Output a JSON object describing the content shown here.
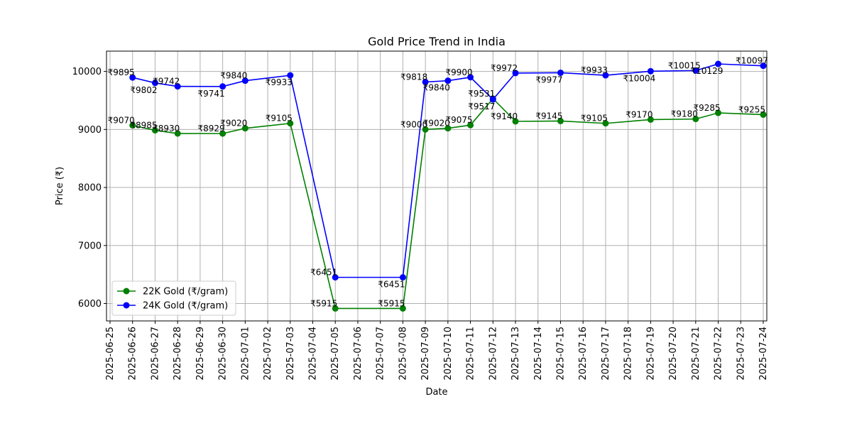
{
  "chart_data": {
    "type": "line",
    "title": "Gold Price Trend in India",
    "xlabel": "Date",
    "ylabel": "Price (₹)",
    "x_ticks": [
      "2025-06-25",
      "2025-06-26",
      "2025-06-27",
      "2025-06-28",
      "2025-06-29",
      "2025-06-30",
      "2025-07-01",
      "2025-07-02",
      "2025-07-03",
      "2025-07-04",
      "2025-07-05",
      "2025-07-06",
      "2025-07-07",
      "2025-07-08",
      "2025-07-09",
      "2025-07-10",
      "2025-07-11",
      "2025-07-12",
      "2025-07-13",
      "2025-07-14",
      "2025-07-15",
      "2025-07-16",
      "2025-07-17",
      "2025-07-18",
      "2025-07-19",
      "2025-07-20",
      "2025-07-21",
      "2025-07-22",
      "2025-07-23",
      "2025-07-24"
    ],
    "y_ticks": [
      6000,
      7000,
      8000,
      9000,
      10000
    ],
    "y_tick_labels": [
      "6000",
      "7000",
      "8000",
      "9000",
      "10000"
    ],
    "ylim": [
      5700,
      10350
    ],
    "xlim": [
      "2025-06-25",
      "2025-07-24"
    ],
    "grid": true,
    "legend_position": "lower-left",
    "series": [
      {
        "name": "22K Gold (₹/gram)",
        "color": "#008000",
        "label_prefix": "₹",
        "points": [
          {
            "x": "2025-06-26",
            "y": 9070,
            "label": "₹9070"
          },
          {
            "x": "2025-06-27",
            "y": 8985,
            "label": "₹8985"
          },
          {
            "x": "2025-06-28",
            "y": 8930,
            "label": "₹8930"
          },
          {
            "x": "2025-06-30",
            "y": 8929,
            "label": "₹8929"
          },
          {
            "x": "2025-07-01",
            "y": 9020,
            "label": "₹9020"
          },
          {
            "x": "2025-07-03",
            "y": 9105,
            "label": "₹9105"
          },
          {
            "x": "2025-07-05",
            "y": 5915,
            "label": "₹5915"
          },
          {
            "x": "2025-07-08",
            "y": 5915,
            "label": "₹5915"
          },
          {
            "x": "2025-07-09",
            "y": 9000,
            "label": "₹9000"
          },
          {
            "x": "2025-07-10",
            "y": 9020,
            "label": "₹9020"
          },
          {
            "x": "2025-07-11",
            "y": 9075,
            "label": "₹9075"
          },
          {
            "x": "2025-07-12",
            "y": 9531,
            "label": "₹9531"
          },
          {
            "x": "2025-07-13",
            "y": 9140,
            "label": "₹9140"
          },
          {
            "x": "2025-07-15",
            "y": 9145,
            "label": "₹9145"
          },
          {
            "x": "2025-07-17",
            "y": 9105,
            "label": "₹9105"
          },
          {
            "x": "2025-07-19",
            "y": 9170,
            "label": "₹9170"
          },
          {
            "x": "2025-07-21",
            "y": 9180,
            "label": "₹9180"
          },
          {
            "x": "2025-07-22",
            "y": 9285,
            "label": "₹9285"
          },
          {
            "x": "2025-07-24",
            "y": 9255,
            "label": "₹9255"
          }
        ]
      },
      {
        "name": "24K Gold (₹/gram)",
        "color": "#0000ff",
        "label_prefix": "₹",
        "points": [
          {
            "x": "2025-06-26",
            "y": 9895,
            "label": "₹9895"
          },
          {
            "x": "2025-06-27",
            "y": 9802,
            "label": "₹9802"
          },
          {
            "x": "2025-06-28",
            "y": 9742,
            "label": "₹9742"
          },
          {
            "x": "2025-06-30",
            "y": 9741,
            "label": "₹9741"
          },
          {
            "x": "2025-07-01",
            "y": 9840,
            "label": "₹9840"
          },
          {
            "x": "2025-07-03",
            "y": 9933,
            "label": "₹9933"
          },
          {
            "x": "2025-07-05",
            "y": 6451,
            "label": "₹6451"
          },
          {
            "x": "2025-07-08",
            "y": 6451,
            "label": "₹6451"
          },
          {
            "x": "2025-07-09",
            "y": 9818,
            "label": "₹9818"
          },
          {
            "x": "2025-07-10",
            "y": 9840,
            "label": "₹9840"
          },
          {
            "x": "2025-07-11",
            "y": 9900,
            "label": "₹9900"
          },
          {
            "x": "2025-07-12",
            "y": 9517,
            "label": "₹9517"
          },
          {
            "x": "2025-07-13",
            "y": 9972,
            "label": "₹9972"
          },
          {
            "x": "2025-07-15",
            "y": 9977,
            "label": "₹9977"
          },
          {
            "x": "2025-07-17",
            "y": 9933,
            "label": "₹9933"
          },
          {
            "x": "2025-07-19",
            "y": 10004,
            "label": "₹10004"
          },
          {
            "x": "2025-07-21",
            "y": 10015,
            "label": "₹10015"
          },
          {
            "x": "2025-07-22",
            "y": 10129,
            "label": "₹10129"
          },
          {
            "x": "2025-07-24",
            "y": 10097,
            "label": "₹10097"
          }
        ]
      }
    ]
  }
}
